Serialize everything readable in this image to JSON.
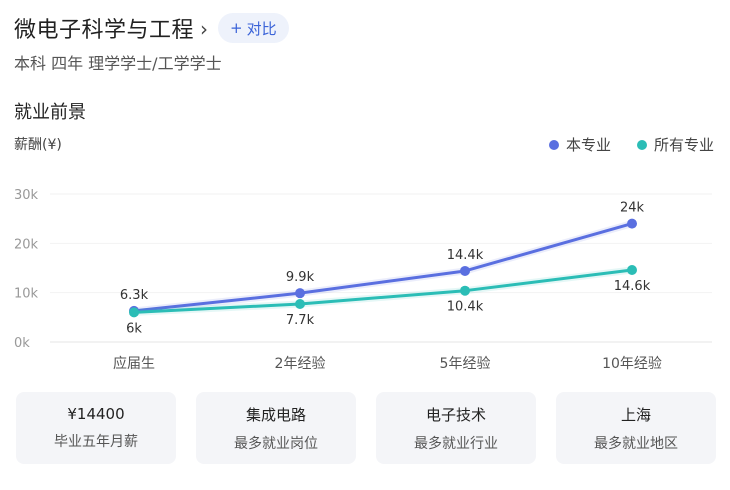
{
  "header": {
    "title": "微电子科学与工程",
    "chevron_icon": "chevron-right-icon",
    "compare_plus": "+",
    "compare_label": "对比",
    "subtitle": "本科 四年 理学学士/工学学士"
  },
  "section": {
    "title": "就业前景",
    "y_unit": "薪酬(¥)"
  },
  "colors": {
    "major": "#5a6fe0",
    "all": "#2bbdb6",
    "accent": "#3a63d8"
  },
  "chart_data": {
    "type": "line",
    "categories": [
      "应届生",
      "2年经验",
      "5年经验",
      "10年经验"
    ],
    "y_ticks": [
      "0k",
      "10k",
      "20k",
      "30k"
    ],
    "ylim": [
      0,
      30000
    ],
    "grid": true,
    "legend_position": "top-right",
    "series": [
      {
        "name": "本专业",
        "values": [
          6300,
          9900,
          14400,
          24000
        ],
        "labels": [
          "6.3k",
          "9.9k",
          "14.4k",
          "24k"
        ]
      },
      {
        "name": "所有专业",
        "values": [
          6000,
          7700,
          10400,
          14600
        ],
        "labels": [
          "6k",
          "7.7k",
          "10.4k",
          "14.6k"
        ]
      }
    ]
  },
  "cards": [
    {
      "value": "¥14400",
      "label": "毕业五年月薪"
    },
    {
      "value": "集成电路",
      "label": "最多就业岗位"
    },
    {
      "value": "电子技术",
      "label": "最多就业行业"
    },
    {
      "value": "上海",
      "label": "最多就业地区"
    }
  ]
}
